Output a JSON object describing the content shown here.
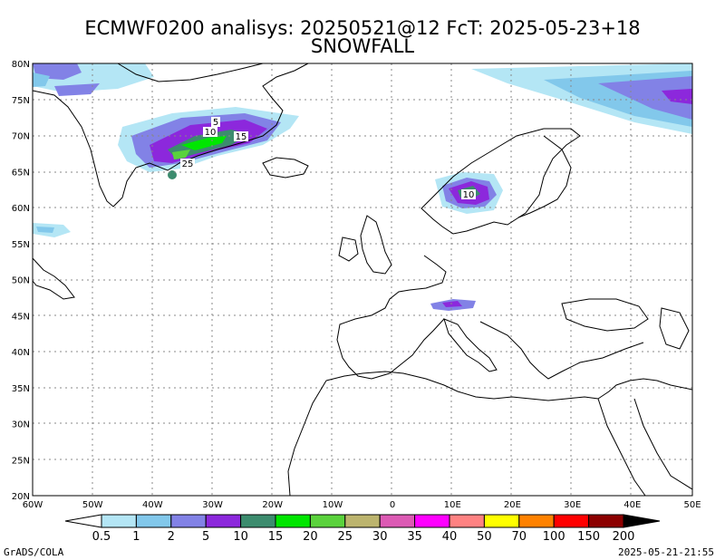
{
  "title": {
    "line1": "ECMWF0200 analisys: 20250521@12 FcT: 2025-05-23+18",
    "line2": "SNOWFALL"
  },
  "map": {
    "lat_labels": [
      "80N",
      "75N",
      "70N",
      "65N",
      "60N",
      "55N",
      "50N",
      "45N",
      "40N",
      "35N",
      "30N",
      "25N",
      "20N"
    ],
    "lon_labels": [
      "60W",
      "50W",
      "40W",
      "30W",
      "20W",
      "10W",
      "0",
      "10E",
      "20E",
      "30E",
      "40E",
      "50E"
    ],
    "contour_labels": [
      "5",
      "10",
      "15",
      "25",
      "10"
    ],
    "grid": true
  },
  "colorbar": {
    "labels": [
      "0.5",
      "1",
      "2",
      "5",
      "10",
      "15",
      "20",
      "25",
      "30",
      "35",
      "40",
      "50",
      "70",
      "100",
      "150",
      "200"
    ],
    "colors": [
      "#ffffff",
      "#b4e6f5",
      "#82c8eb",
      "#8282e6",
      "#8c28dc",
      "#3c8c6e",
      "#00e600",
      "#5ad23c",
      "#bcb46e",
      "#dc5ab4",
      "#ff00ff",
      "#ff8282",
      "#ffff00",
      "#ff8200",
      "#ff0000",
      "#8c0000",
      "#000000"
    ]
  },
  "footer": {
    "left": "GrADS/COLA",
    "right": "2025-05-21-21:55"
  }
}
